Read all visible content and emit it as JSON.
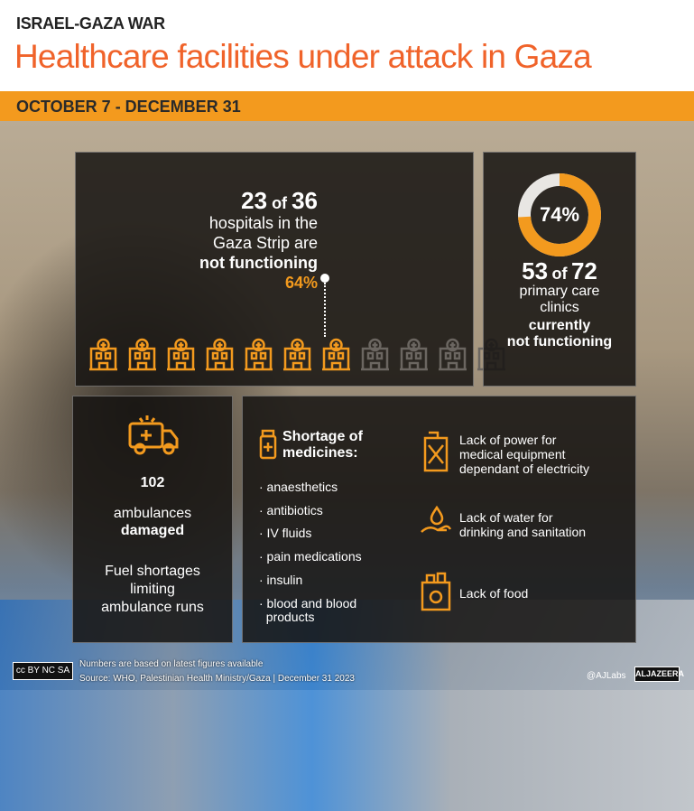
{
  "header": {
    "kicker": "ISRAEL-GAZA WAR",
    "title": "Healthcare facilities under attack in Gaza",
    "date_range": "OCTOBER 7 - DECEMBER 31"
  },
  "hospitals": {
    "count": "23",
    "of": "of",
    "total": "36",
    "line1": "hospitals in the",
    "line2": "Gaza Strip are",
    "line3": "not functioning",
    "percent": "64%",
    "fraction_not_functioning": 0.64,
    "icon_count": 11
  },
  "clinics": {
    "percent": "74%",
    "fraction": 0.74,
    "count": "53",
    "of": "of",
    "total": "72",
    "line1": "primary care",
    "line2": "clinics",
    "line3": "currently",
    "line4": "not functioning"
  },
  "ambulances": {
    "icon": "ambulance-icon",
    "count": "102",
    "line1": "ambulances",
    "line2": "damaged",
    "fuel1": "Fuel shortages",
    "fuel2": "limiting",
    "fuel3": "ambulance runs"
  },
  "shortages": {
    "icon": "medicine-bottle-icon",
    "title1": "Shortage of",
    "title2": "medicines:",
    "items": [
      "· anaesthetics",
      "· antibiotics",
      "· IV fluids",
      "· pain medications",
      "· insulin",
      "· blood and blood",
      "  products"
    ],
    "power": {
      "icon": "fuel-can-icon",
      "l1": "Lack of power for",
      "l2": "medical equipment",
      "l3": "dependant of electricity"
    },
    "water": {
      "icon": "water-hand-icon",
      "l1": "Lack of water for",
      "l2": "drinking and sanitation"
    },
    "food": {
      "icon": "food-bag-icon",
      "l1": "Lack of food"
    }
  },
  "footer": {
    "note": "Numbers are based on latest figures available",
    "source": "Source: WHO, Palestinian Health Ministry/Gaza  |  December 31 2023",
    "handle": "@AJLabs",
    "brand": "ALJAZEERA",
    "license": "cc BY NC SA"
  },
  "colors": {
    "accent": "#f39a1e",
    "title": "#f0632a",
    "inactive": "#6b6661"
  }
}
